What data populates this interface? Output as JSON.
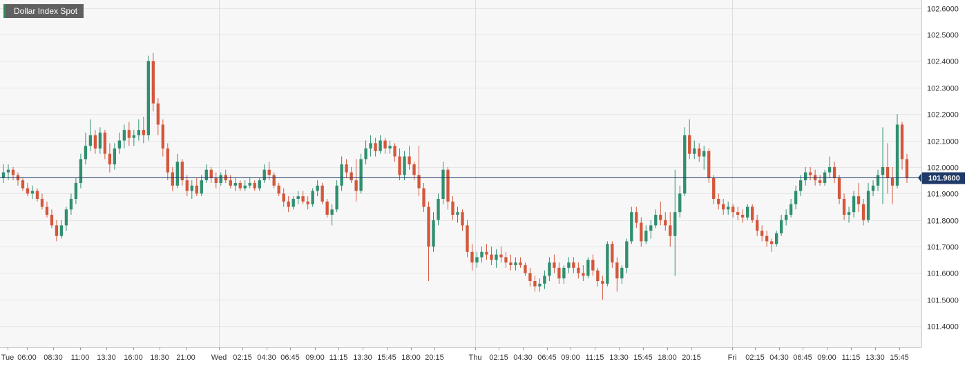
{
  "chart_title": "Dollar Index Spot",
  "colors": {
    "up": "#2f8f6f",
    "down": "#d4573c",
    "grid": "#e6e6e6",
    "plot_background": "#f7f7f7",
    "last_line": "#1f3a68",
    "last_label": "#1f3a68"
  },
  "chart_data": {
    "type": "candlestick",
    "title": "Dollar Index Spot",
    "ylim": [
      101.32,
      102.63
    ],
    "y_ticks": [
      "102.6000",
      "102.5000",
      "102.4000",
      "102.3000",
      "102.2000",
      "102.1000",
      "102.0000",
      "101.9000",
      "101.8000",
      "101.7000",
      "101.6000",
      "101.5000",
      "101.4000"
    ],
    "x_labels": [
      "Tue",
      "06:00",
      "08:30",
      "11:00",
      "13:30",
      "16:00",
      "18:30",
      "21:00",
      "Wed",
      "02:15",
      "04:30",
      "06:45",
      "09:00",
      "11:15",
      "13:30",
      "15:45",
      "18:00",
      "20:15",
      "Thu",
      "02:15",
      "04:30",
      "06:45",
      "09:00",
      "11:15",
      "13:30",
      "15:45",
      "18:00",
      "20:15",
      "Fri",
      "02:15",
      "04:30",
      "06:45",
      "09:00",
      "11:15",
      "13:30",
      "15:45"
    ],
    "day_separators": [
      "Wed",
      "Thu",
      "Fri"
    ],
    "last_price": "101.9600",
    "grid": true,
    "ohlc": [
      [
        101.96,
        102.01,
        101.94,
        101.98
      ],
      [
        101.98,
        102.01,
        101.95,
        101.99
      ],
      [
        101.99,
        102.0,
        101.95,
        101.97
      ],
      [
        101.97,
        101.98,
        101.93,
        101.95
      ],
      [
        101.95,
        101.96,
        101.91,
        101.92
      ],
      [
        101.92,
        101.94,
        101.89,
        101.9
      ],
      [
        101.9,
        101.93,
        101.88,
        101.91
      ],
      [
        101.91,
        101.92,
        101.87,
        101.88
      ],
      [
        101.88,
        101.9,
        101.84,
        101.85
      ],
      [
        101.85,
        101.87,
        101.81,
        101.82
      ],
      [
        101.82,
        101.84,
        101.77,
        101.78
      ],
      [
        101.78,
        101.8,
        101.72,
        101.74
      ],
      [
        101.74,
        101.8,
        101.73,
        101.78
      ],
      [
        101.78,
        101.85,
        101.76,
        101.84
      ],
      [
        101.84,
        101.9,
        101.82,
        101.88
      ],
      [
        101.88,
        101.96,
        101.86,
        101.94
      ],
      [
        101.94,
        102.05,
        101.92,
        102.03
      ],
      [
        102.03,
        102.13,
        102.01,
        102.08
      ],
      [
        102.08,
        102.18,
        102.06,
        102.12
      ],
      [
        102.12,
        102.14,
        102.05,
        102.07
      ],
      [
        102.07,
        102.15,
        102.05,
        102.13
      ],
      [
        102.13,
        102.14,
        102.03,
        102.05
      ],
      [
        102.05,
        102.09,
        101.98,
        102.01
      ],
      [
        102.01,
        102.09,
        101.99,
        102.07
      ],
      [
        102.07,
        102.13,
        102.05,
        102.1
      ],
      [
        102.1,
        102.16,
        102.07,
        102.14
      ],
      [
        102.14,
        102.17,
        102.08,
        102.11
      ],
      [
        102.11,
        102.14,
        102.08,
        102.12
      ],
      [
        102.12,
        102.18,
        102.1,
        102.14
      ],
      [
        102.14,
        102.19,
        102.09,
        102.12
      ],
      [
        102.12,
        102.42,
        102.1,
        102.4
      ],
      [
        102.4,
        102.43,
        102.21,
        102.24
      ],
      [
        102.24,
        102.26,
        102.12,
        102.16
      ],
      [
        102.16,
        102.18,
        102.04,
        102.07
      ],
      [
        102.07,
        102.09,
        101.95,
        101.98
      ],
      [
        101.98,
        102.0,
        101.91,
        101.93
      ],
      [
        101.93,
        102.05,
        101.92,
        102.02
      ],
      [
        102.02,
        102.03,
        101.93,
        101.95
      ],
      [
        101.95,
        101.97,
        101.89,
        101.91
      ],
      [
        101.91,
        101.95,
        101.88,
        101.93
      ],
      [
        101.93,
        101.96,
        101.89,
        101.9
      ],
      [
        101.9,
        101.97,
        101.89,
        101.95
      ],
      [
        101.95,
        102.01,
        101.94,
        101.99
      ],
      [
        101.99,
        102.0,
        101.94,
        101.96
      ],
      [
        101.96,
        101.98,
        101.92,
        101.94
      ],
      [
        101.94,
        101.98,
        101.93,
        101.97
      ],
      [
        101.97,
        101.99,
        101.94,
        101.95
      ],
      [
        101.95,
        101.97,
        101.92,
        101.93
      ],
      [
        101.93,
        101.96,
        101.91,
        101.94
      ],
      [
        101.94,
        101.95,
        101.91,
        101.92
      ],
      [
        101.92,
        101.95,
        101.91,
        101.93
      ],
      [
        101.93,
        101.96,
        101.92,
        101.94
      ],
      [
        101.94,
        101.95,
        101.91,
        101.92
      ],
      [
        101.92,
        101.96,
        101.91,
        101.95
      ],
      [
        101.95,
        102.01,
        101.94,
        101.99
      ],
      [
        101.99,
        102.02,
        101.95,
        101.97
      ],
      [
        101.97,
        101.98,
        101.92,
        101.93
      ],
      [
        101.93,
        101.94,
        101.89,
        101.9
      ],
      [
        101.9,
        101.92,
        101.85,
        101.87
      ],
      [
        101.87,
        101.89,
        101.83,
        101.85
      ],
      [
        101.85,
        101.89,
        101.84,
        101.88
      ],
      [
        101.88,
        101.91,
        101.86,
        101.89
      ],
      [
        101.89,
        101.91,
        101.86,
        101.87
      ],
      [
        101.87,
        101.89,
        101.84,
        101.86
      ],
      [
        101.86,
        101.92,
        101.85,
        101.91
      ],
      [
        101.91,
        101.95,
        101.89,
        101.93
      ],
      [
        101.93,
        101.94,
        101.86,
        101.87
      ],
      [
        101.87,
        101.88,
        101.81,
        101.82
      ],
      [
        101.82,
        101.86,
        101.78,
        101.84
      ],
      [
        101.84,
        101.95,
        101.83,
        101.93
      ],
      [
        101.93,
        102.04,
        101.91,
        102.01
      ],
      [
        102.01,
        102.03,
        101.96,
        101.98
      ],
      [
        101.98,
        102.0,
        101.94,
        101.95
      ],
      [
        101.95,
        102.03,
        101.87,
        101.91
      ],
      [
        101.91,
        102.05,
        101.9,
        102.03
      ],
      [
        102.03,
        102.1,
        102.01,
        102.07
      ],
      [
        102.07,
        102.12,
        102.04,
        102.09
      ],
      [
        102.09,
        102.11,
        102.04,
        102.06
      ],
      [
        102.06,
        102.12,
        102.05,
        102.1
      ],
      [
        102.1,
        102.11,
        102.05,
        102.07
      ],
      [
        102.07,
        102.1,
        102.05,
        102.08
      ],
      [
        102.08,
        102.09,
        102.02,
        102.04
      ],
      [
        102.04,
        102.07,
        101.95,
        101.97
      ],
      [
        101.97,
        102.06,
        101.95,
        102.04
      ],
      [
        102.04,
        102.08,
        101.99,
        102.01
      ],
      [
        102.01,
        102.02,
        101.95,
        101.97
      ],
      [
        101.97,
        102.08,
        101.89,
        101.92
      ],
      [
        101.92,
        101.94,
        101.83,
        101.85
      ],
      [
        101.85,
        101.87,
        101.57,
        101.7
      ],
      [
        101.7,
        101.83,
        101.68,
        101.8
      ],
      [
        101.8,
        101.9,
        101.78,
        101.88
      ],
      [
        101.88,
        102.02,
        101.86,
        101.99
      ],
      [
        101.99,
        102.0,
        101.84,
        101.87
      ],
      [
        101.87,
        101.89,
        101.8,
        101.82
      ],
      [
        101.82,
        101.85,
        101.79,
        101.83
      ],
      [
        101.83,
        101.84,
        101.76,
        101.78
      ],
      [
        101.78,
        101.8,
        101.66,
        101.68
      ],
      [
        101.68,
        101.71,
        101.61,
        101.64
      ],
      [
        101.64,
        101.68,
        101.62,
        101.66
      ],
      [
        101.66,
        101.7,
        101.64,
        101.68
      ],
      [
        101.68,
        101.71,
        101.65,
        101.67
      ],
      [
        101.67,
        101.7,
        101.63,
        101.65
      ],
      [
        101.65,
        101.69,
        101.62,
        101.67
      ],
      [
        101.67,
        101.7,
        101.64,
        101.66
      ],
      [
        101.66,
        101.68,
        101.62,
        101.64
      ],
      [
        101.64,
        101.67,
        101.61,
        101.63
      ],
      [
        101.63,
        101.66,
        101.61,
        101.64
      ],
      [
        101.64,
        101.66,
        101.62,
        101.63
      ],
      [
        101.63,
        101.64,
        101.59,
        101.6
      ],
      [
        101.6,
        101.62,
        101.55,
        101.57
      ],
      [
        101.57,
        101.59,
        101.53,
        101.55
      ],
      [
        101.55,
        101.58,
        101.53,
        101.56
      ],
      [
        101.56,
        101.61,
        101.54,
        101.59
      ],
      [
        101.59,
        101.66,
        101.57,
        101.64
      ],
      [
        101.64,
        101.67,
        101.6,
        101.62
      ],
      [
        101.62,
        101.64,
        101.56,
        101.58
      ],
      [
        101.58,
        101.63,
        101.56,
        101.62
      ],
      [
        101.62,
        101.66,
        101.6,
        101.64
      ],
      [
        101.64,
        101.66,
        101.6,
        101.62
      ],
      [
        101.62,
        101.64,
        101.58,
        101.6
      ],
      [
        101.6,
        101.63,
        101.57,
        101.59
      ],
      [
        101.59,
        101.66,
        101.58,
        101.65
      ],
      [
        101.65,
        101.67,
        101.59,
        101.61
      ],
      [
        101.61,
        101.62,
        101.55,
        101.57
      ],
      [
        101.57,
        101.59,
        101.5,
        101.56
      ],
      [
        101.56,
        101.72,
        101.55,
        101.71
      ],
      [
        101.71,
        101.72,
        101.62,
        101.64
      ],
      [
        101.64,
        101.66,
        101.53,
        101.58
      ],
      [
        101.58,
        101.63,
        101.56,
        101.62
      ],
      [
        101.62,
        101.73,
        101.6,
        101.72
      ],
      [
        101.72,
        101.85,
        101.71,
        101.83
      ],
      [
        101.83,
        101.85,
        101.77,
        101.79
      ],
      [
        101.79,
        101.81,
        101.7,
        101.72
      ],
      [
        101.72,
        101.78,
        101.71,
        101.76
      ],
      [
        101.76,
        101.8,
        101.73,
        101.78
      ],
      [
        101.78,
        101.84,
        101.77,
        101.82
      ],
      [
        101.82,
        101.87,
        101.78,
        101.8
      ],
      [
        101.8,
        101.83,
        101.76,
        101.78
      ],
      [
        101.78,
        101.83,
        101.7,
        101.74
      ],
      [
        101.74,
        101.99,
        101.59,
        101.83
      ],
      [
        101.83,
        101.93,
        101.81,
        101.9
      ],
      [
        101.9,
        102.15,
        101.89,
        102.12
      ],
      [
        102.12,
        102.18,
        102.03,
        102.05
      ],
      [
        102.05,
        102.1,
        102.03,
        102.07
      ],
      [
        102.07,
        102.09,
        102.02,
        102.04
      ],
      [
        102.04,
        102.08,
        101.99,
        102.06
      ],
      [
        102.06,
        102.07,
        101.94,
        101.96
      ],
      [
        101.96,
        101.97,
        101.86,
        101.88
      ],
      [
        101.88,
        101.9,
        101.84,
        101.86
      ],
      [
        101.86,
        101.88,
        101.82,
        101.84
      ],
      [
        101.84,
        101.87,
        101.82,
        101.85
      ],
      [
        101.85,
        101.86,
        101.81,
        101.83
      ],
      [
        101.83,
        101.85,
        101.8,
        101.82
      ],
      [
        101.82,
        101.84,
        101.79,
        101.81
      ],
      [
        101.81,
        101.86,
        101.8,
        101.85
      ],
      [
        101.85,
        101.86,
        101.79,
        101.8
      ],
      [
        101.8,
        101.82,
        101.74,
        101.76
      ],
      [
        101.76,
        101.78,
        101.72,
        101.74
      ],
      [
        101.74,
        101.76,
        101.7,
        101.72
      ],
      [
        101.72,
        101.73,
        101.68,
        101.71
      ],
      [
        101.71,
        101.76,
        101.7,
        101.75
      ],
      [
        101.75,
        101.82,
        101.74,
        101.8
      ],
      [
        101.8,
        101.84,
        101.78,
        101.82
      ],
      [
        101.82,
        101.88,
        101.81,
        101.86
      ],
      [
        101.86,
        101.93,
        101.84,
        101.91
      ],
      [
        101.91,
        101.97,
        101.89,
        101.95
      ],
      [
        101.95,
        102.0,
        101.93,
        101.98
      ],
      [
        101.98,
        102.0,
        101.95,
        101.97
      ],
      [
        101.97,
        101.99,
        101.93,
        101.95
      ],
      [
        101.95,
        101.97,
        101.93,
        101.94
      ],
      [
        101.94,
        101.99,
        101.93,
        101.98
      ],
      [
        101.98,
        102.04,
        101.96,
        102.0
      ],
      [
        102.0,
        102.02,
        101.94,
        101.96
      ],
      [
        101.96,
        101.97,
        101.86,
        101.88
      ],
      [
        101.88,
        101.9,
        101.8,
        101.82
      ],
      [
        101.82,
        101.85,
        101.79,
        101.83
      ],
      [
        101.83,
        101.91,
        101.81,
        101.89
      ],
      [
        101.89,
        101.94,
        101.83,
        101.86
      ],
      [
        101.86,
        101.88,
        101.78,
        101.8
      ],
      [
        101.8,
        101.94,
        101.79,
        101.91
      ],
      [
        101.91,
        101.95,
        101.89,
        101.93
      ],
      [
        101.93,
        101.99,
        101.91,
        101.97
      ],
      [
        101.97,
        102.15,
        101.86,
        102.0
      ],
      [
        102.0,
        102.09,
        101.9,
        101.96
      ],
      [
        101.96,
        102.0,
        101.86,
        101.93
      ],
      [
        101.93,
        102.2,
        101.92,
        102.16
      ],
      [
        102.16,
        102.17,
        101.99,
        102.03
      ],
      [
        102.03,
        102.05,
        101.94,
        101.96
      ]
    ]
  }
}
